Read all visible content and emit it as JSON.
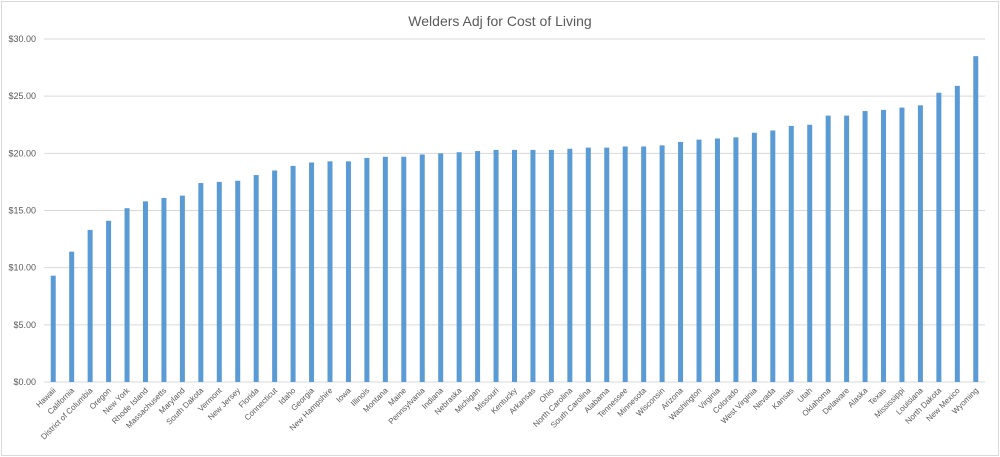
{
  "chart_data": {
    "type": "bar",
    "title": "Welders Adj for Cost of Living",
    "xlabel": "",
    "ylabel": "",
    "ylim": [
      0,
      30
    ],
    "y_ticks": [
      0,
      5,
      10,
      15,
      20,
      25,
      30
    ],
    "y_tick_labels": [
      "$0.00",
      "$5.00",
      "$10.00",
      "$15.00",
      "$20.00",
      "$25.00",
      "$30.00"
    ],
    "grid": true,
    "legend": "none",
    "bar_color": "#5b9bd5",
    "grid_color": "#d9d9d9",
    "categories": [
      "Hawaii",
      "California",
      "District of Columbia",
      "Oregon",
      "New York",
      "Rhode Island",
      "Massachusetts",
      "Maryland",
      "South Dakota",
      "Vermont",
      "New Jersey",
      "Florida",
      "Connecticut",
      "Idaho",
      "Georgia",
      "New Hampshire",
      "Iowa",
      "Illinois",
      "Montana",
      "Maine",
      "Pennsylvania",
      "Indiana",
      "Nebraska",
      "Michigan",
      "Missouri",
      "Kentucky",
      "Arkansas",
      "Ohio",
      "North Carolina",
      "South Carolina",
      "Alabama",
      "Tennessee",
      "Minnesota",
      "Wisconsin",
      "Arizona",
      "Washington",
      "Virginia",
      "Colorado",
      "West Virginia",
      "Nevada",
      "Kansas",
      "Utah",
      "Oklahoma",
      "Delaware",
      "Alaska",
      "Texas",
      "Mississippi",
      "Louisiana",
      "North Dakota",
      "New Mexico",
      "Wyoming"
    ],
    "values": [
      9.3,
      11.4,
      13.3,
      14.1,
      15.2,
      15.8,
      16.1,
      16.3,
      17.4,
      17.5,
      17.6,
      18.1,
      18.5,
      18.9,
      19.2,
      19.3,
      19.3,
      19.6,
      19.7,
      19.7,
      19.9,
      20.0,
      20.1,
      20.2,
      20.3,
      20.3,
      20.3,
      20.3,
      20.4,
      20.5,
      20.5,
      20.6,
      20.6,
      20.7,
      21.0,
      21.2,
      21.3,
      21.4,
      21.8,
      22.0,
      22.4,
      22.5,
      23.3,
      23.3,
      23.7,
      23.8,
      24.0,
      24.2,
      25.3,
      25.9,
      28.5
    ]
  }
}
